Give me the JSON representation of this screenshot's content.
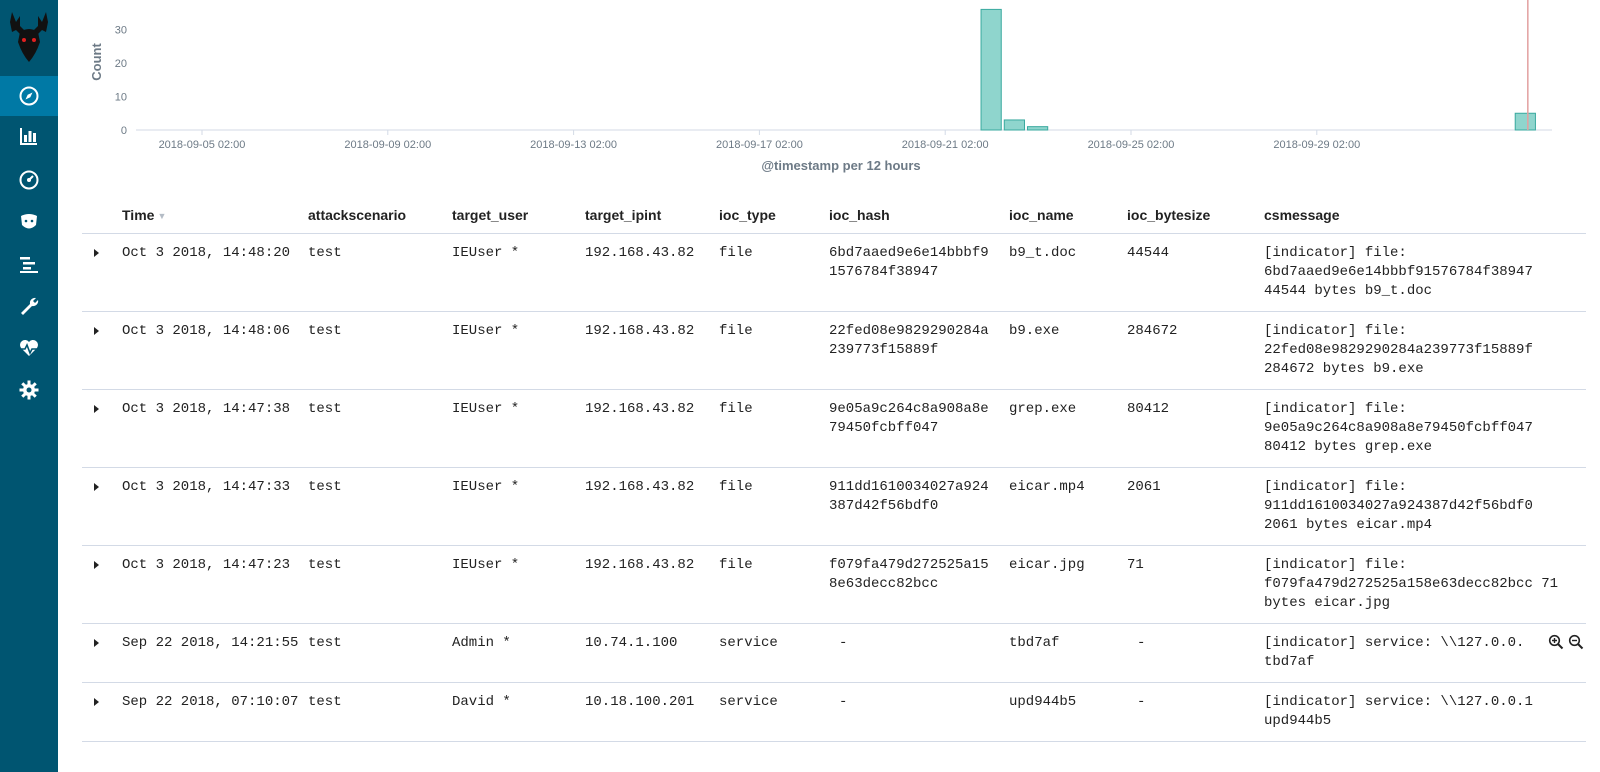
{
  "chart_data": {
    "type": "bar",
    "ylabel": "Count",
    "xlabel": "@timestamp per 12 hours",
    "y_ticks": [
      "0",
      "10",
      "20",
      "30"
    ],
    "ylim": [
      0,
      38
    ],
    "x_ticks": [
      "2018-09-05 02:00",
      "2018-09-09 02:00",
      "2018-09-13 02:00",
      "2018-09-17 02:00",
      "2018-09-21 02:00",
      "2018-09-25 02:00",
      "2018-09-29 02:00"
    ],
    "bars": [
      {
        "x": "2018-09-22 02:00",
        "value": 36
      },
      {
        "x": "2018-09-22 14:00",
        "value": 3
      },
      {
        "x": "2018-09-23 02:00",
        "value": 1
      },
      {
        "x": "2018-10-03 14:00",
        "value": 5
      }
    ],
    "bar_color": "#8fd5cd",
    "bar_border": "#3aa99f",
    "marker_line_color": "#e2a0a0"
  },
  "table": {
    "columns": [
      "Time",
      "attackscenario",
      "target_user",
      "target_ipint",
      "ioc_type",
      "ioc_hash",
      "ioc_name",
      "ioc_bytesize",
      "csmessage"
    ],
    "rows": [
      {
        "time": "Oct 3 2018, 14:48:20",
        "attackscenario": "test",
        "target_user": "IEUser *",
        "target_ipint": "192.168.43.82",
        "ioc_type": "file",
        "ioc_hash": "6bd7aaed9e6e14bbbf91576784f38947",
        "ioc_name": "b9_t.doc",
        "ioc_bytesize": "44544",
        "csmessage_1": "[indicator] file:",
        "csmessage_2": "6bd7aaed9e6e14bbbf91576784f38947",
        "csmessage_3": "44544 bytes b9_t.doc"
      },
      {
        "time": "Oct 3 2018, 14:48:06",
        "attackscenario": "test",
        "target_user": "IEUser *",
        "target_ipint": "192.168.43.82",
        "ioc_type": "file",
        "ioc_hash": "22fed08e9829290284a239773f15889f",
        "ioc_name": "b9.exe",
        "ioc_bytesize": "284672",
        "csmessage_1": "[indicator] file:",
        "csmessage_2": "22fed08e9829290284a239773f15889f",
        "csmessage_3": "284672 bytes b9.exe"
      },
      {
        "time": "Oct 3 2018, 14:47:38",
        "attackscenario": "test",
        "target_user": "IEUser *",
        "target_ipint": "192.168.43.82",
        "ioc_type": "file",
        "ioc_hash": "9e05a9c264c8a908a8e79450fcbff047",
        "ioc_name": "grep.exe",
        "ioc_bytesize": "80412",
        "csmessage_1": "[indicator] file:",
        "csmessage_2": "9e05a9c264c8a908a8e79450fcbff047",
        "csmessage_3": "80412 bytes grep.exe"
      },
      {
        "time": "Oct 3 2018, 14:47:33",
        "attackscenario": "test",
        "target_user": "IEUser *",
        "target_ipint": "192.168.43.82",
        "ioc_type": "file",
        "ioc_hash": "911dd1610034027a924387d42f56bdf0",
        "ioc_name": "eicar.mp4",
        "ioc_bytesize": "2061",
        "csmessage_1": "[indicator] file:",
        "csmessage_2": "911dd1610034027a924387d42f56bdf0",
        "csmessage_3": "2061 bytes eicar.mp4"
      },
      {
        "time": "Oct 3 2018, 14:47:23",
        "attackscenario": "test",
        "target_user": "IEUser *",
        "target_ipint": "192.168.43.82",
        "ioc_type": "file",
        "ioc_hash": "f079fa479d272525a158e63decc82bcc",
        "ioc_name": "eicar.jpg",
        "ioc_bytesize": "71",
        "csmessage_1": "[indicator] file:",
        "csmessage_2": "f079fa479d272525a158e63decc82bcc 71",
        "csmessage_3": "bytes eicar.jpg"
      },
      {
        "time": "Sep 22 2018, 14:21:55",
        "attackscenario": "test",
        "target_user": "Admin *",
        "target_ipint": "10.74.1.100",
        "ioc_type": "service",
        "ioc_hash": "-",
        "ioc_name": "tbd7af",
        "ioc_bytesize": "-",
        "csmessage_1": "[indicator] service: \\\\127.0.0.",
        "csmessage_2": "tbd7af",
        "csmessage_3": ""
      },
      {
        "time": "Sep 22 2018, 07:10:07",
        "attackscenario": "test",
        "target_user": "David *",
        "target_ipint": "10.18.100.201",
        "ioc_type": "service",
        "ioc_hash": "-",
        "ioc_name": "upd944b5",
        "ioc_bytesize": "-",
        "csmessage_1": "[indicator] service: \\\\127.0.0.1",
        "csmessage_2": "upd944b5",
        "csmessage_3": ""
      }
    ]
  },
  "sidebar": {
    "icons": [
      "logo",
      "discover-icon",
      "visualize-icon",
      "dashboard-icon",
      "timelion-icon",
      "logs-icon",
      "devtools-icon",
      "monitoring-icon",
      "settings-icon"
    ]
  }
}
